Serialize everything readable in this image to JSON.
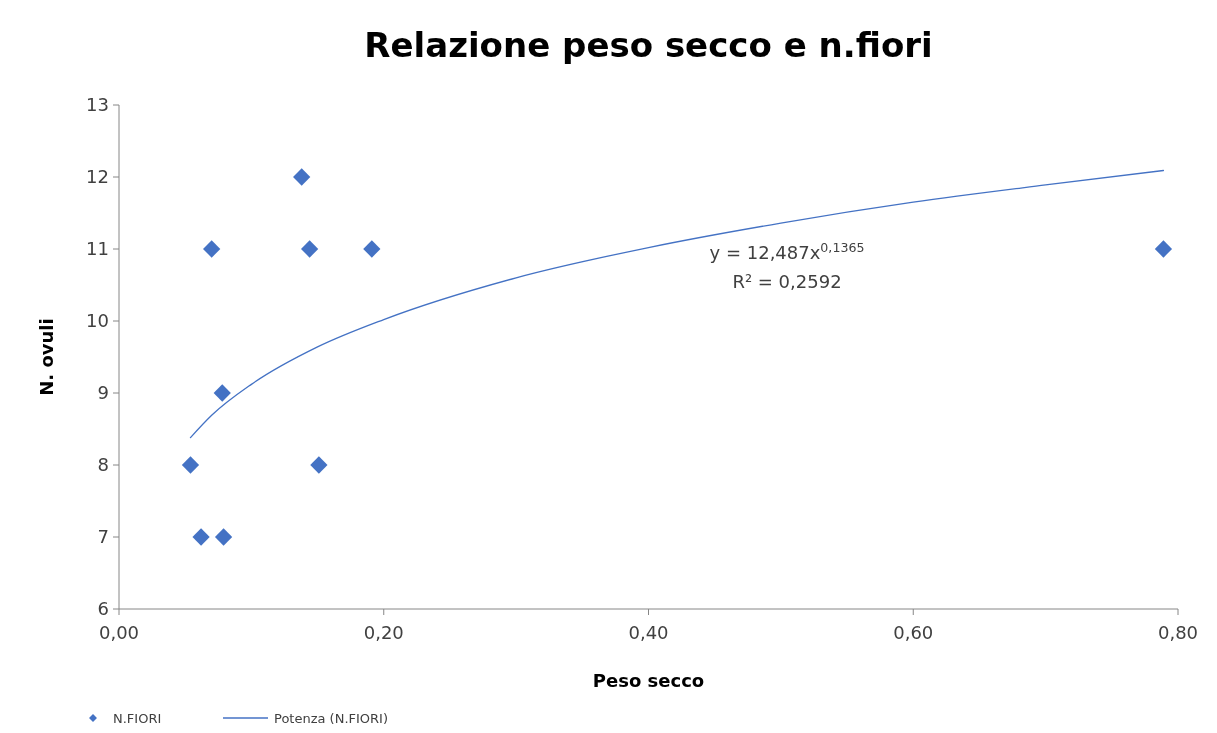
{
  "chart_data": {
    "type": "scatter",
    "title": "Relazione peso secco e n.fiori",
    "xlabel": "Peso secco",
    "ylabel": "N. ovuli",
    "series": [
      {
        "name": "N.FIORI",
        "color": "#4472c4",
        "marker": "diamond",
        "x": [
          0.054,
          0.062,
          0.079,
          0.07,
          0.078,
          0.138,
          0.144,
          0.151,
          0.191,
          0.789
        ],
        "values": [
          8,
          7,
          7,
          11,
          9,
          12,
          11,
          8,
          11,
          11
        ]
      },
      {
        "name": "Potenza (N.FIORI)",
        "type": "line",
        "color": "#4472c4",
        "marker": "none",
        "line_style": "solid",
        "x": [
          0.054,
          0.07,
          0.1,
          0.15,
          0.2,
          0.3,
          0.4,
          0.5,
          0.6,
          0.7,
          0.789
        ],
        "values": [
          8.38,
          8.69,
          9.12,
          9.64,
          10.02,
          10.6,
          11.02,
          11.36,
          11.65,
          11.89,
          12.09
        ]
      }
    ],
    "xlim": [
      0,
      0.8
    ],
    "xticks": [
      {
        "value": 0,
        "label": "0,00"
      },
      {
        "value": 0.2,
        "label": "0,20"
      },
      {
        "value": 0.4,
        "label": "0,40"
      },
      {
        "value": 0.6,
        "label": "0,60"
      },
      {
        "value": 0.8,
        "label": "0,80"
      }
    ],
    "ylim": [
      6,
      13
    ],
    "yticks": [
      6,
      7,
      8,
      9,
      10,
      11,
      12,
      13
    ],
    "grid": false,
    "legend": "bottom left",
    "annotations": [
      "y = 12,487x$^{0,1365}$",
      "R² = 0,2592"
    ]
  }
}
